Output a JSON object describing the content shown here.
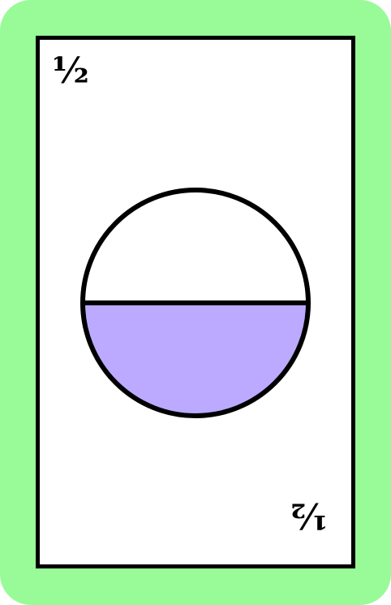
{
  "card": {
    "fraction_label": "½",
    "fraction_value": 0.5,
    "border_color": "#98fb98",
    "fill_color": "#bbaaff",
    "outline_color": "#000000"
  }
}
